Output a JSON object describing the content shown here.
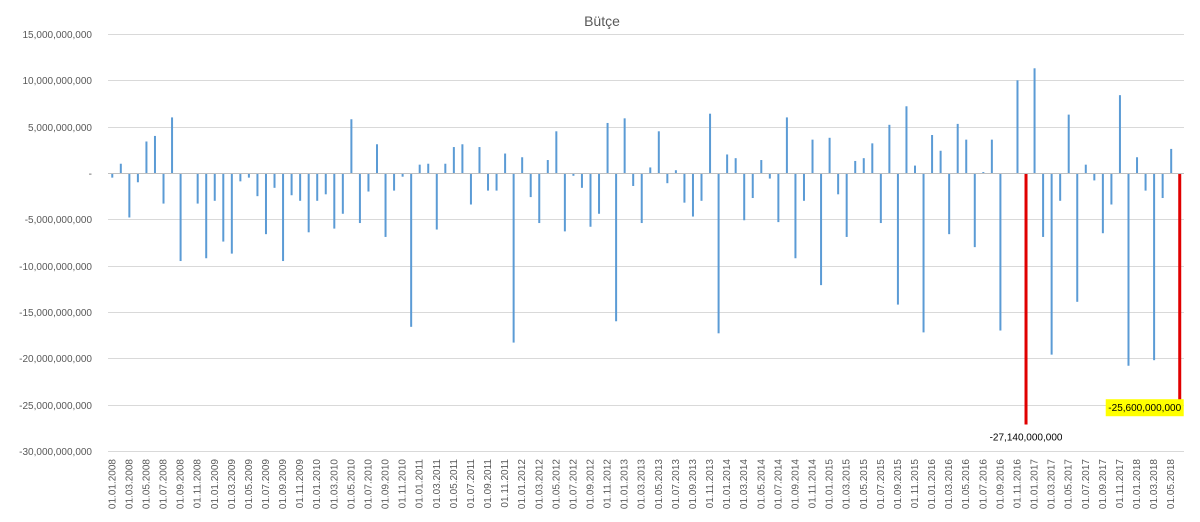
{
  "chart_data": {
    "type": "bar",
    "title": "Bütçe",
    "xlabel": "",
    "ylabel": "",
    "ylim": [
      -30000000000,
      15000000000
    ],
    "y_ticks": [
      15000000000,
      10000000000,
      5000000000,
      0,
      -5000000000,
      -10000000000,
      -15000000000,
      -20000000000,
      -25000000000,
      -30000000000
    ],
    "y_tick_labels": [
      "15,000,000,000",
      "10,000,000,000",
      "5,000,000,000",
      "-",
      "-5,000,000,000",
      "-10,000,000,000",
      "-15,000,000,000",
      "-20,000,000,000",
      "-25,000,000,000",
      "-30,000,000,000"
    ],
    "grid": true,
    "legend": "none",
    "bar_color": "#5b9bd5",
    "highlight_color": "#e00000",
    "categories": [
      "01.01.2008",
      "01.02.2008",
      "01.03.2008",
      "01.04.2008",
      "01.05.2008",
      "01.06.2008",
      "01.07.2008",
      "01.08.2008",
      "01.09.2008",
      "01.10.2008",
      "01.11.2008",
      "01.12.2008",
      "01.01.2009",
      "01.02.2009",
      "01.03.2009",
      "01.04.2009",
      "01.05.2009",
      "01.06.2009",
      "01.07.2009",
      "01.08.2009",
      "01.09.2009",
      "01.10.2009",
      "01.11.2009",
      "01.12.2009",
      "01.01.2010",
      "01.02.2010",
      "01.03.2010",
      "01.04.2010",
      "01.05.2010",
      "01.06.2010",
      "01.07.2010",
      "01.08.2010",
      "01.09.2010",
      "01.10.2010",
      "01.11.2010",
      "01.12.2010",
      "01.01.2011",
      "01.02.2011",
      "01.03.2011",
      "01.04.2011",
      "01.05.2011",
      "01.06.2011",
      "01.07.2011",
      "01.08.2011",
      "01.09.2011",
      "01.10.2011",
      "01.11.2011",
      "01.12.2011",
      "01.01.2012",
      "01.02.2012",
      "01.03.2012",
      "01.04.2012",
      "01.05.2012",
      "01.06.2012",
      "01.07.2012",
      "01.08.2012",
      "01.09.2012",
      "01.10.2012",
      "01.11.2012",
      "01.12.2012",
      "01.01.2013",
      "01.02.2013",
      "01.03.2013",
      "01.04.2013",
      "01.05.2013",
      "01.06.2013",
      "01.07.2013",
      "01.08.2013",
      "01.09.2013",
      "01.10.2013",
      "01.11.2013",
      "01.12.2013",
      "01.01.2014",
      "01.02.2014",
      "01.03.2014",
      "01.04.2014",
      "01.05.2014",
      "01.06.2014",
      "01.07.2014",
      "01.08.2014",
      "01.09.2014",
      "01.10.2014",
      "01.11.2014",
      "01.12.2014",
      "01.01.2015",
      "01.02.2015",
      "01.03.2015",
      "01.04.2015",
      "01.05.2015",
      "01.06.2015",
      "01.07.2015",
      "01.08.2015",
      "01.09.2015",
      "01.10.2015",
      "01.11.2015",
      "01.12.2015",
      "01.01.2016",
      "01.02.2016",
      "01.03.2016",
      "01.04.2016",
      "01.05.2016",
      "01.06.2016",
      "01.07.2016",
      "01.08.2016",
      "01.09.2016",
      "01.10.2016",
      "01.11.2016",
      "01.12.2016",
      "01.01.2017",
      "01.02.2017",
      "01.03.2017",
      "01.04.2017",
      "01.05.2017",
      "01.06.2017",
      "01.07.2017",
      "01.08.2017",
      "01.09.2017",
      "01.10.2017",
      "01.11.2017",
      "01.12.2017",
      "01.01.2018",
      "01.02.2018",
      "01.03.2018",
      "01.04.2018",
      "01.05.2018",
      "01.06.2018"
    ],
    "x_tick_labels": [
      "01.01.2008",
      "",
      "01.03.2008",
      "",
      "01.05.2008",
      "",
      "01.07.2008",
      "",
      "01.09.2008",
      "",
      "01.11.2008",
      "",
      "01.01.2009",
      "",
      "01.03.2009",
      "",
      "01.05.2009",
      "",
      "01.07.2009",
      "",
      "01.09.2009",
      "",
      "01.11.2009",
      "",
      "01.01.2010",
      "",
      "01.03.2010",
      "",
      "01.05.2010",
      "",
      "01.07.2010",
      "",
      "01.09.2010",
      "",
      "01.11.2010",
      "",
      "01.01.2011",
      "",
      "01.03.2011",
      "",
      "01.05.2011",
      "",
      "01.07.2011",
      "",
      "01.09.2011",
      "",
      "01.11.2011",
      "",
      "01.01.2012",
      "",
      "01.03.2012",
      "",
      "01.05.2012",
      "",
      "01.07.2012",
      "",
      "01.09.2012",
      "",
      "01.11.2012",
      "",
      "01.01.2013",
      "",
      "01.03.2013",
      "",
      "01.05.2013",
      "",
      "01.07.2013",
      "",
      "01.09.2013",
      "",
      "01.11.2013",
      "",
      "01.01.2014",
      "",
      "01.03.2014",
      "",
      "01.05.2014",
      "",
      "01.07.2014",
      "",
      "01.09.2014",
      "",
      "01.11.2014",
      "",
      "01.01.2015",
      "",
      "01.03.2015",
      "",
      "01.05.2015",
      "",
      "01.07.2015",
      "",
      "01.09.2015",
      "",
      "01.11.2015",
      "",
      "01.01.2016",
      "",
      "01.03.2016",
      "",
      "01.05.2016",
      "",
      "01.07.2016",
      "",
      "01.09.2016",
      "",
      "01.11.2016",
      "",
      "01.01.2017",
      "",
      "01.03.2017",
      "",
      "01.05.2017",
      "",
      "01.07.2017",
      "",
      "01.09.2017",
      "",
      "01.11.2017",
      "",
      "01.01.2018",
      "",
      "01.03.2018",
      "",
      "01.05.2018",
      ""
    ],
    "values": [
      -500000000,
      1000000000,
      -4800000000,
      -1000000000,
      3400000000,
      4000000000,
      -3300000000,
      6000000000,
      -9500000000,
      0,
      -3300000000,
      -9200000000,
      -3000000000,
      -7400000000,
      -8700000000,
      -900000000,
      -500000000,
      -2500000000,
      -6600000000,
      -1600000000,
      -9500000000,
      -2400000000,
      -3000000000,
      -6400000000,
      -3000000000,
      -2300000000,
      -6000000000,
      -4400000000,
      5800000000,
      -5400000000,
      -2000000000,
      3100000000,
      -6900000000,
      -1900000000,
      -400000000,
      -16600000000,
      900000000,
      1000000000,
      -6100000000,
      1000000000,
      2800000000,
      3100000000,
      -3400000000,
      2800000000,
      -1900000000,
      -1900000000,
      2100000000,
      -18300000000,
      1700000000,
      -2600000000,
      -5400000000,
      1400000000,
      4500000000,
      -6300000000,
      -300000000,
      -1600000000,
      -5800000000,
      -4400000000,
      5400000000,
      -16000000000,
      5900000000,
      -1400000000,
      -5400000000,
      600000000,
      4500000000,
      -1100000000,
      300000000,
      -3200000000,
      -4700000000,
      -3000000000,
      6400000000,
      -17300000000,
      2000000000,
      1600000000,
      -5100000000,
      -2700000000,
      1400000000,
      -600000000,
      -5300000000,
      6000000000,
      -9200000000,
      -3000000000,
      3600000000,
      -12100000000,
      3800000000,
      -2300000000,
      -6900000000,
      1300000000,
      1600000000,
      3200000000,
      -5400000000,
      5200000000,
      -14200000000,
      7200000000,
      800000000,
      -17200000000,
      4100000000,
      2400000000,
      -6600000000,
      5300000000,
      3600000000,
      -8000000000,
      100000000,
      3600000000,
      -17000000000,
      0,
      10000000000,
      -27140000000,
      11300000000,
      -6900000000,
      -19600000000,
      -3000000000,
      6300000000,
      -13900000000,
      900000000,
      -800000000,
      -6500000000,
      -3400000000,
      8400000000,
      -20800000000,
      1700000000,
      -1900000000,
      -20200000000,
      -2700000000,
      2600000000,
      -25600000000
    ],
    "highlighted_indices": [
      107,
      125
    ],
    "annotations": [
      {
        "index": 107,
        "label": "-27,140,000,000",
        "highlight_box": false
      },
      {
        "index": 125,
        "label": "-25,600,000,000",
        "highlight_box": true,
        "box_color": "#ffff00"
      }
    ]
  }
}
